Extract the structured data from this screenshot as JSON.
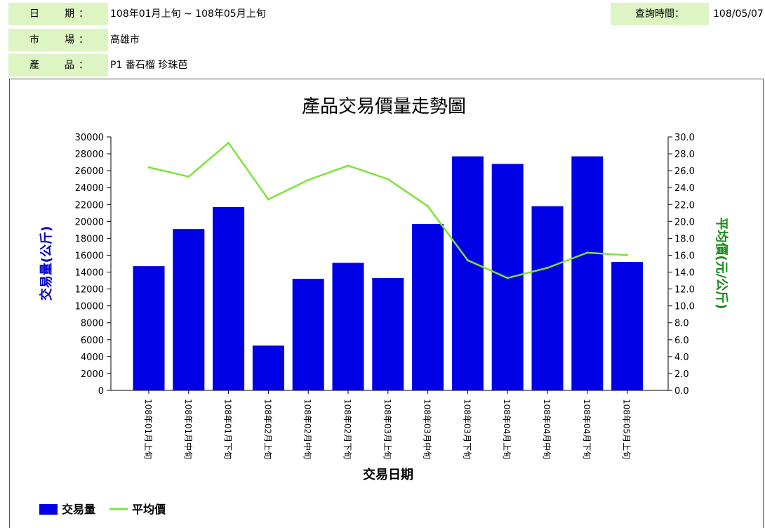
{
  "info": {
    "date_label": [
      "日",
      "期",
      "："
    ],
    "date_value": "108年01月上旬 ~ 108年05月上旬",
    "market_label": [
      "市",
      "場",
      "："
    ],
    "market_value": "高雄市",
    "product_label": [
      "產",
      "品",
      "："
    ],
    "product_value": "P1 番石榴 珍珠芭",
    "query_time_label": "查詢時間：",
    "query_time_value": "108/05/07"
  },
  "colors": {
    "bar": "#0000e6",
    "line": "#7de33b",
    "left_axis_title": "#0000cc",
    "right_axis_title": "#1a8a1a",
    "info_label_bg": "#dcf5c3"
  },
  "chart_data": {
    "type": "bar+line",
    "title": "產品交易價量走勢圖",
    "xlabel": "交易日期",
    "ylabel_left": "交易量(公斤)",
    "ylabel_right": "平均價(元/公斤)",
    "categories": [
      "108年01月上旬",
      "108年01月中旬",
      "108年01月下旬",
      "108年02月上旬",
      "108年02月中旬",
      "108年02月下旬",
      "108年03月上旬",
      "108年03月中旬",
      "108年03月下旬",
      "108年04月上旬",
      "108年04月中旬",
      "108年04月下旬",
      "108年05月上旬"
    ],
    "y_left": {
      "min": 0,
      "max": 30000,
      "step": 2000,
      "ticks": [
        "0",
        "2000",
        "4000",
        "6000",
        "8000",
        "10000",
        "12000",
        "14000",
        "16000",
        "18000",
        "20000",
        "22000",
        "24000",
        "26000",
        "28000",
        "30000"
      ]
    },
    "y_right": {
      "min": 0,
      "max": 30,
      "step": 2,
      "ticks": [
        "0.0",
        "2.0",
        "4.0",
        "6.0",
        "8.0",
        "10.0",
        "12.0",
        "14.0",
        "16.0",
        "18.0",
        "20.0",
        "22.0",
        "24.0",
        "26.0",
        "28.0",
        "30.0"
      ]
    },
    "series": [
      {
        "name": "交易量",
        "type": "bar",
        "axis": "left",
        "values": [
          14700,
          19100,
          21700,
          5300,
          13200,
          15100,
          13300,
          19700,
          27700,
          26800,
          21800,
          27700,
          15200
        ]
      },
      {
        "name": "平均價",
        "type": "line",
        "axis": "right",
        "values": [
          26.4,
          25.3,
          29.3,
          22.6,
          24.9,
          26.6,
          25.0,
          21.8,
          15.4,
          13.3,
          14.5,
          16.3,
          16.0
        ]
      }
    ],
    "legend": {
      "position": "bottom-left",
      "items": [
        "交易量",
        "平均價"
      ]
    },
    "grid": false
  }
}
